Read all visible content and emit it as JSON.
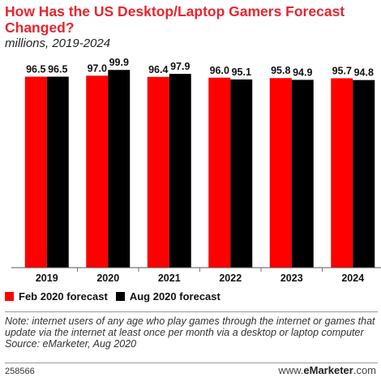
{
  "header": {
    "title": "How Has the US Desktop/Laptop Gamers Forecast Changed?",
    "subtitle": "millions, 2019-2024"
  },
  "chart_data": {
    "type": "bar",
    "categories": [
      "2019",
      "2020",
      "2021",
      "2022",
      "2023",
      "2024"
    ],
    "series": [
      {
        "name": "Feb 2020 forecast",
        "color": "#ff0000",
        "values": [
          96.5,
          97.0,
          96.4,
          96.0,
          95.8,
          95.7
        ]
      },
      {
        "name": "Aug 2020 forecast",
        "color": "#000000",
        "values": [
          96.5,
          99.9,
          97.9,
          95.1,
          94.9,
          94.8
        ]
      }
    ],
    "value_labels": [
      [
        "96.5",
        "97.0",
        "96.4",
        "96.0",
        "95.8",
        "95.7"
      ],
      [
        "96.5",
        "99.9",
        "97.9",
        "95.1",
        "94.9",
        "94.8"
      ]
    ],
    "ylim": [
      0,
      100
    ],
    "grid": false,
    "legend_position": "bottom-left",
    "title": "How Has the US Desktop/Laptop Gamers Forecast Changed?",
    "xlabel": "",
    "ylabel": ""
  },
  "legend": {
    "items": [
      {
        "label": "Feb 2020 forecast",
        "color": "#ff0000"
      },
      {
        "label": "Aug 2020 forecast",
        "color": "#000000"
      }
    ]
  },
  "footer": {
    "note": "Note: internet users of any age who play games through the internet or games that update via the internet at least once per month via a desktop or laptop computer",
    "source": "Source: eMarketer, Aug 2020",
    "id": "258566",
    "brand_prefix": "www.",
    "brand_name": "eMarketer",
    "brand_suffix": ".com"
  }
}
